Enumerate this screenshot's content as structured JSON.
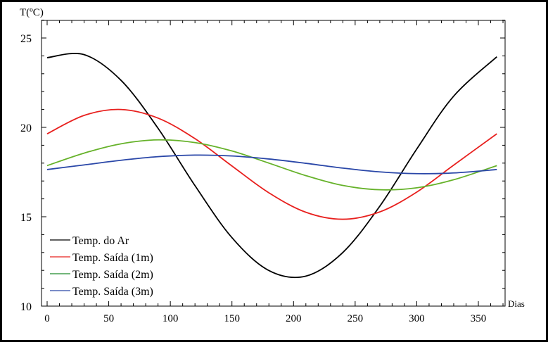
{
  "chart_data": {
    "type": "line",
    "title": "",
    "xlabel": "Dias",
    "ylabel": "T(ºC)",
    "xlim": [
      -4,
      372
    ],
    "ylim": [
      10,
      26
    ],
    "xticks": [
      0,
      50,
      100,
      150,
      200,
      250,
      300,
      350
    ],
    "yticks": [
      10,
      15,
      20,
      25
    ],
    "grid": false,
    "legend_position": "bottom-left",
    "x": [
      0,
      30,
      60,
      90,
      120,
      150,
      180,
      210,
      240,
      270,
      300,
      330,
      365
    ],
    "series": [
      {
        "name": "Temp. do Ar",
        "color": "#000000",
        "legend_color": "#000000",
        "values": [
          23.9,
          24.07,
          22.63,
          19.95,
          16.74,
          13.83,
          11.99,
          11.68,
          13.0,
          15.59,
          18.79,
          21.75,
          23.95
        ]
      },
      {
        "name": "Temp. Saída (1m)",
        "color": "#e8201e",
        "legend_color": "#e8201e",
        "values": [
          19.64,
          20.67,
          21.0,
          20.52,
          19.37,
          17.84,
          16.34,
          15.25,
          14.86,
          15.27,
          16.38,
          17.89,
          19.64
        ]
      },
      {
        "name": "Temp. Saída (2m)",
        "color": "#66b22a",
        "legend_color": "#1f8a2a",
        "values": [
          17.86,
          18.56,
          19.08,
          19.3,
          19.15,
          18.68,
          18.0,
          17.3,
          16.75,
          16.51,
          16.62,
          17.07,
          17.86
        ]
      },
      {
        "name": "Temp. Saída (3m)",
        "color": "#2a47a8",
        "legend_color": "#2a47a8",
        "values": [
          17.64,
          17.9,
          18.16,
          18.36,
          18.45,
          18.4,
          18.23,
          17.99,
          17.72,
          17.51,
          17.41,
          17.45,
          17.64
        ]
      }
    ]
  }
}
